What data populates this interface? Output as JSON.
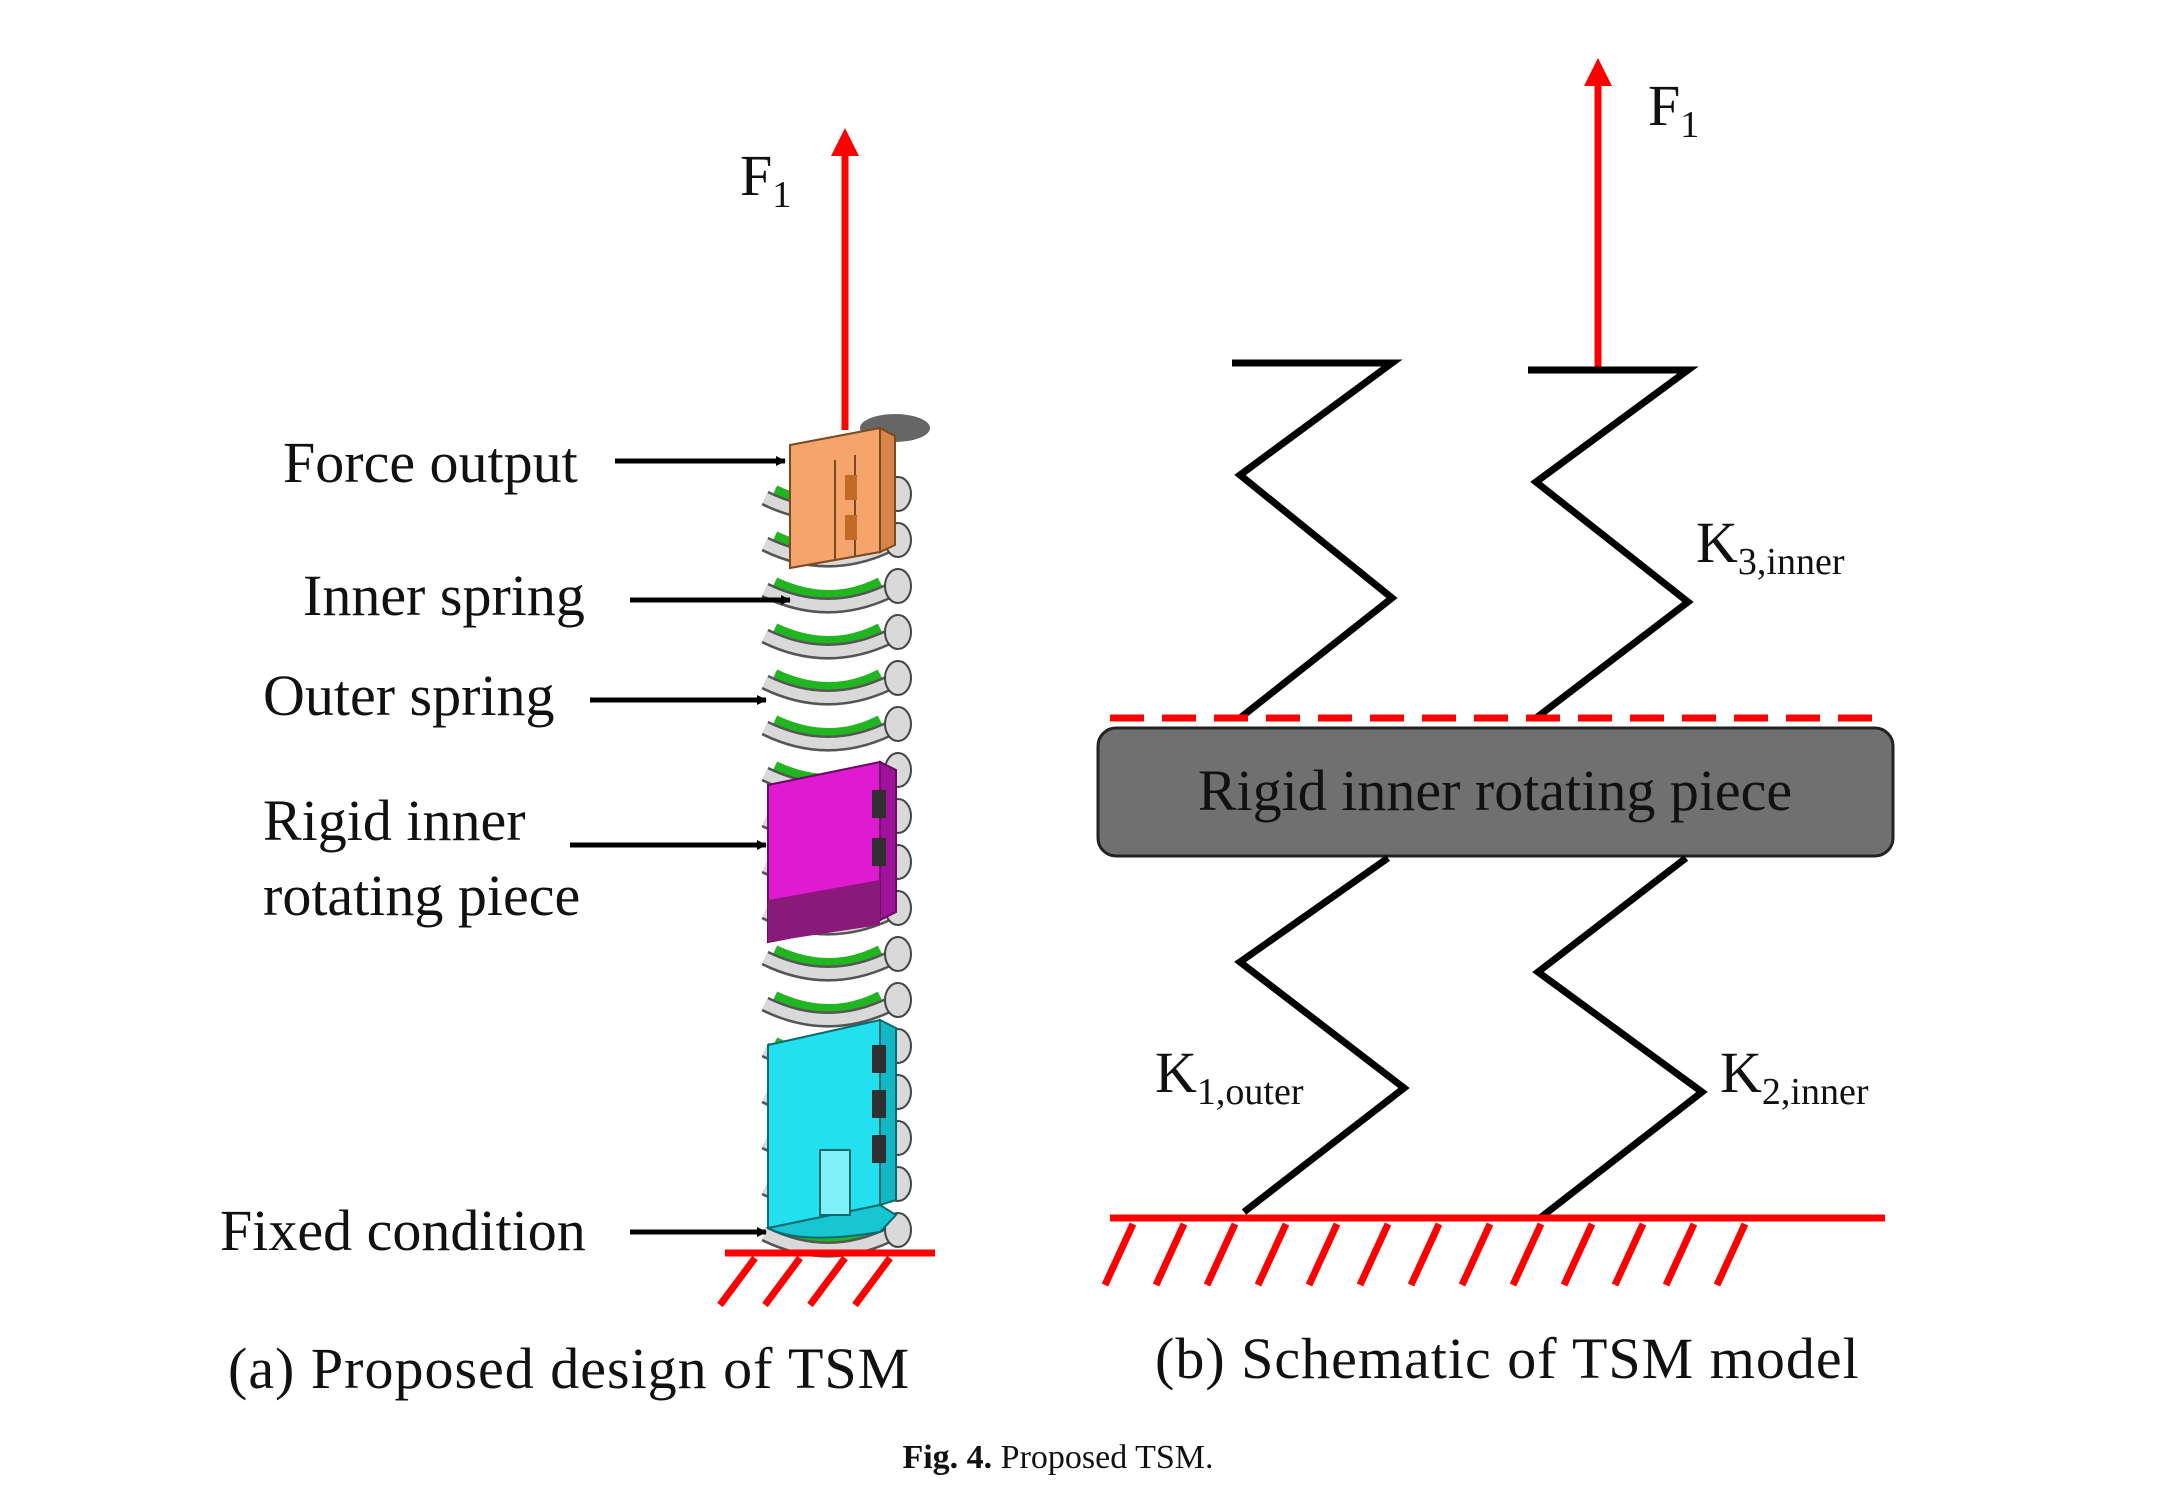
{
  "panel_a": {
    "force_label": "F",
    "force_sub": "1",
    "labels": {
      "force_output": "Force output",
      "inner_spring": "Inner spring",
      "outer_spring": "Outer spring",
      "rigid_line1": "Rigid inner",
      "rigid_line2": "rotating piece",
      "fixed_condition": "Fixed condition"
    },
    "caption": "(a) Proposed design of TSM",
    "colors": {
      "force_output_part": "#f5a46b",
      "rigid_piece_part": "#e01ad0",
      "fixed_part": "#22e0ee",
      "inner_spring": "#22b522",
      "outer_spring": "#d9d9d9",
      "force_arrow": "#ff0000"
    }
  },
  "panel_b": {
    "force_label": "F",
    "force_sub": "1",
    "rigid_label": "Rigid inner rotating piece",
    "k3": {
      "main": "K",
      "sub": "3,inner"
    },
    "k1": {
      "main": "K",
      "sub": "1,outer"
    },
    "k2": {
      "main": "K",
      "sub": "2,inner"
    },
    "caption": "(b) Schematic of TSM model",
    "colors": {
      "rigid_block": "#707070",
      "ground": "#ff0000",
      "spring": "#000000"
    }
  },
  "figure_caption": {
    "bold": "Fig. 4.",
    "text": " Proposed TSM."
  }
}
